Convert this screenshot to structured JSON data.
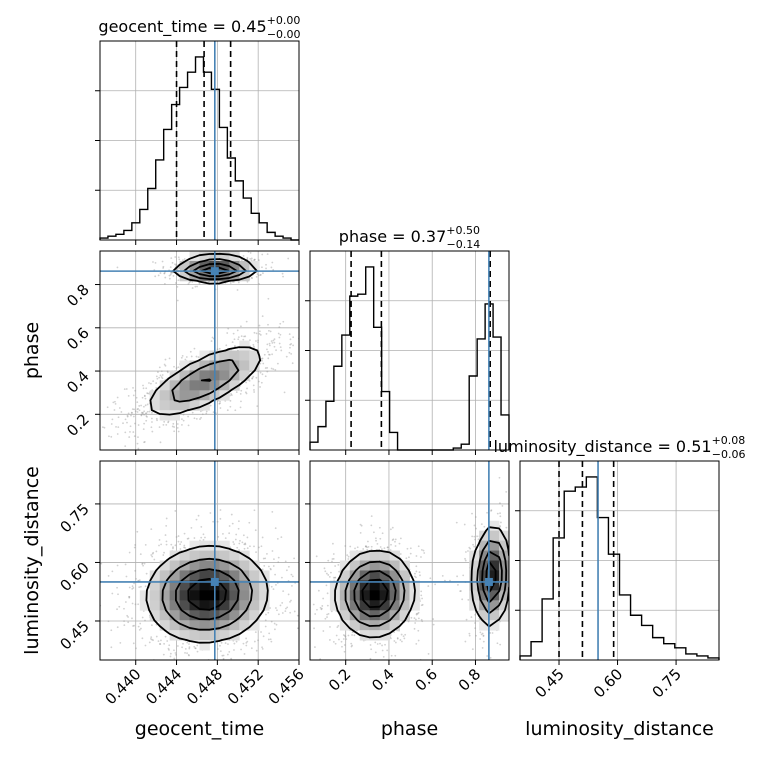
{
  "chart_data": {
    "type": "corner",
    "parameters": [
      {
        "name": "geocent_time",
        "range": [
          0.4365,
          0.456
        ],
        "ticks": [
          "0.440",
          "0.444",
          "0.448",
          "0.452",
          "0.456"
        ],
        "tick_values": [
          0.44,
          0.444,
          0.448,
          0.452,
          0.456
        ],
        "truth": 0.44775,
        "quantiles": [
          0.444,
          0.4467,
          0.4493
        ],
        "title": {
          "base": "geocent_time = 0.45",
          "sup": "+0.00",
          "sub": "−0.00"
        },
        "hist_counts": [
          1,
          2,
          3,
          5,
          9,
          16,
          27,
          42,
          58,
          71,
          80,
          88,
          96,
          88,
          79,
          59,
          43,
          31,
          22,
          14,
          9,
          4,
          2,
          1,
          0
        ],
        "hist_yticks": [
          0.25,
          0.5,
          0.75
        ]
      },
      {
        "name": "phase",
        "range": [
          0.035,
          0.955
        ],
        "ticks": [
          "0.2",
          "0.4",
          "0.6",
          "0.8"
        ],
        "tick_values": [
          0.2,
          0.4,
          0.6,
          0.8
        ],
        "truth": 0.862,
        "quantiles": [
          0.225,
          0.365,
          0.868
        ],
        "title": {
          "base": "phase = 0.37",
          "sup": "+0.50",
          "sub": "−0.14"
        },
        "hist_counts": [
          4,
          12,
          25,
          43,
          59,
          79,
          80,
          94,
          63,
          30,
          9,
          0,
          0,
          0,
          0,
          0,
          0,
          0,
          1,
          3,
          38,
          57,
          75,
          58,
          18
        ],
        "hist_yticks": [
          0.25,
          0.5,
          0.75
        ],
        "row_ticks": [
          "0.2",
          "0.4",
          "0.6",
          "0.8"
        ]
      },
      {
        "name": "luminosity_distance",
        "range": [
          0.35,
          0.86
        ],
        "ticks": [
          "0.45",
          "0.60",
          "0.75"
        ],
        "tick_values": [
          0.45,
          0.6,
          0.75
        ],
        "truth": 0.55,
        "quantiles": [
          0.45,
          0.51,
          0.59
        ],
        "title": {
          "base": "luminosity_distance = 0.51",
          "sup": "+0.08",
          "sub": "−0.06"
        },
        "hist_counts": [
          2,
          9,
          30,
          60,
          83,
          85,
          90,
          70,
          52,
          32,
          22,
          17,
          11,
          8,
          6,
          3,
          2,
          1
        ],
        "hist_yticks": [
          0.25,
          0.5,
          0.75
        ],
        "row_ticks": [
          "0.45",
          "0.60",
          "0.75"
        ]
      }
    ],
    "truth_color": "#4682b4",
    "hist_color": "#000000",
    "grid": true,
    "pairs": [
      {
        "x": "geocent_time",
        "y": "phase",
        "modes": [
          {
            "cx": 0.4478,
            "cy": 0.87,
            "sx": 0.0019,
            "sy": 0.027,
            "rho": 0.05,
            "w": 0.35
          },
          {
            "cx": 0.4468,
            "cy": 0.355,
            "sx": 0.003,
            "sy": 0.085,
            "rho": 0.72,
            "w": 0.65
          }
        ]
      },
      {
        "x": "geocent_time",
        "y": "luminosity_distance",
        "modes": [
          {
            "cx": 0.447,
            "cy": 0.518,
            "sx": 0.0028,
            "sy": 0.058,
            "rho": 0.05,
            "w": 1.0
          }
        ]
      },
      {
        "x": "phase",
        "y": "luminosity_distance",
        "modes": [
          {
            "cx": 0.335,
            "cy": 0.52,
            "sx": 0.085,
            "sy": 0.052,
            "rho": 0.05,
            "w": 0.65
          },
          {
            "cx": 0.875,
            "cy": 0.565,
            "sx": 0.04,
            "sy": 0.06,
            "rho": 0.1,
            "w": 0.35
          }
        ]
      }
    ]
  }
}
